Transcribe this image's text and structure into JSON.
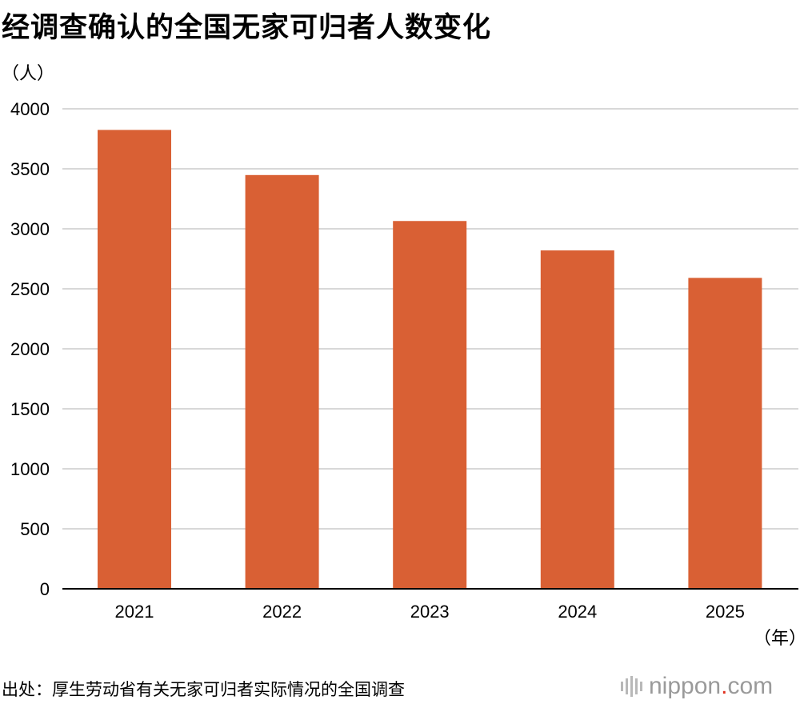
{
  "title": "经调查确认的全国无家可归者人数变化",
  "source": "出处：厚生劳动省有关无家可归者实际情况的全国调查",
  "brand": {
    "name": "nippon",
    "dot": ".",
    "tld": "com"
  },
  "chart_data": {
    "type": "bar",
    "title": "经调查确认的全国无家可归者人数变化",
    "y_unit": "（人）",
    "x_unit": "（年）",
    "categories": [
      "2021",
      "2022",
      "2023",
      "2024",
      "2025"
    ],
    "values": [
      3824,
      3448,
      3065,
      2820,
      2591
    ],
    "ylim": [
      0,
      4000
    ],
    "yticks": [
      0,
      500,
      1000,
      1500,
      2000,
      2500,
      3000,
      3500,
      4000
    ],
    "grid": true,
    "bar_color": "#d96034",
    "grid_color": "#cccccc",
    "axis_color": "#000000"
  }
}
